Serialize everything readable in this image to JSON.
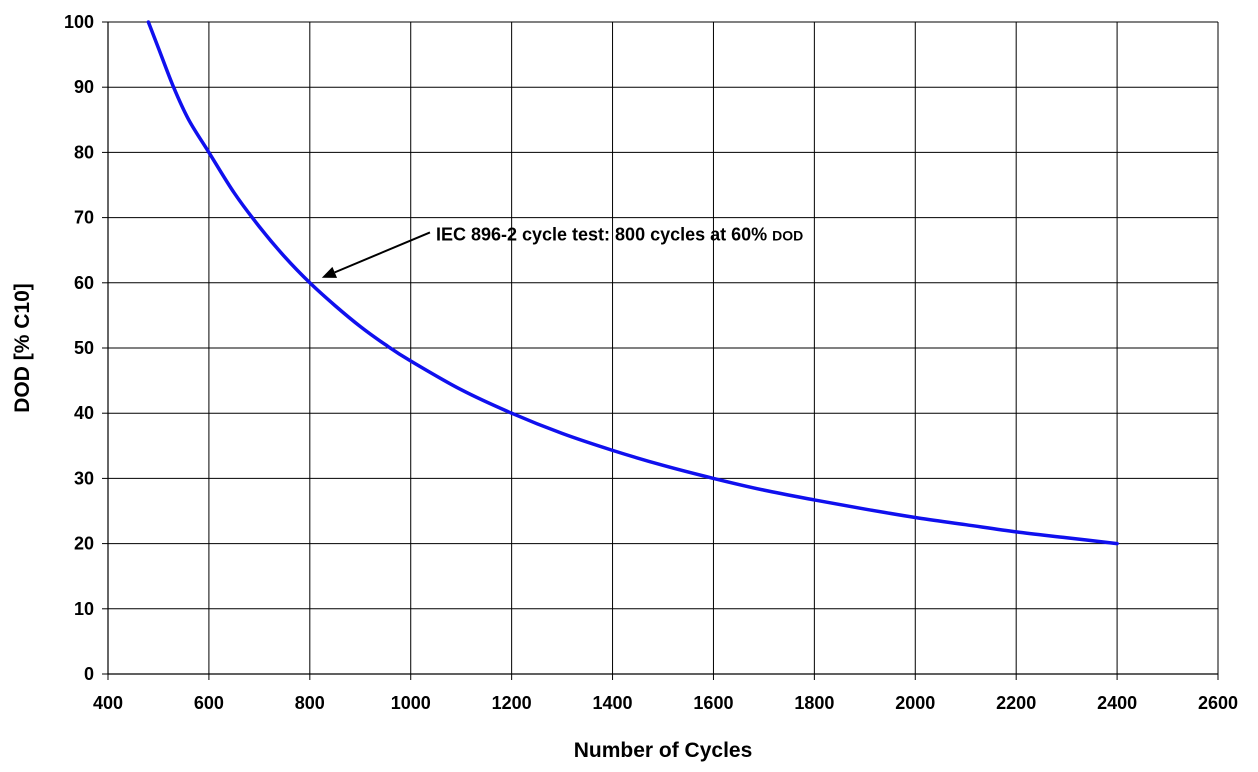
{
  "chart_data": {
    "type": "line",
    "title": "",
    "xlabel": "Number of Cycles",
    "ylabel": "DOD [% C10]",
    "xlim": [
      400,
      2600
    ],
    "ylim": [
      0,
      100
    ],
    "xticks": [
      400,
      600,
      800,
      1000,
      1200,
      1400,
      1600,
      1800,
      2000,
      2200,
      2400,
      2600
    ],
    "yticks": [
      0,
      10,
      20,
      30,
      40,
      50,
      60,
      70,
      80,
      90,
      100
    ],
    "grid": true,
    "series": [
      {
        "color": "#1010ee",
        "x": [
          480,
          500,
          530,
          560,
          600,
          650,
          700,
          750,
          800,
          850,
          900,
          950,
          1000,
          1100,
          1200,
          1300,
          1400,
          1500,
          1600,
          1700,
          1800,
          1900,
          2000,
          2100,
          2200,
          2300,
          2400
        ],
        "y": [
          100,
          96,
          90,
          85,
          80,
          73.8,
          68.6,
          64,
          60,
          56.5,
          53.3,
          50.5,
          48,
          43.6,
          40,
          36.9,
          34.3,
          32,
          30,
          28.2,
          26.7,
          25.3,
          24,
          22.9,
          21.8,
          20.9,
          20
        ]
      }
    ],
    "annotations": [
      {
        "text": "IEC 896-2 cycle test: 800 cycles at 60% ",
        "subtext": "DOD",
        "arrow_to": [
          800,
          60
        ],
        "text_at": [
          1050,
          66.5
        ]
      }
    ]
  }
}
